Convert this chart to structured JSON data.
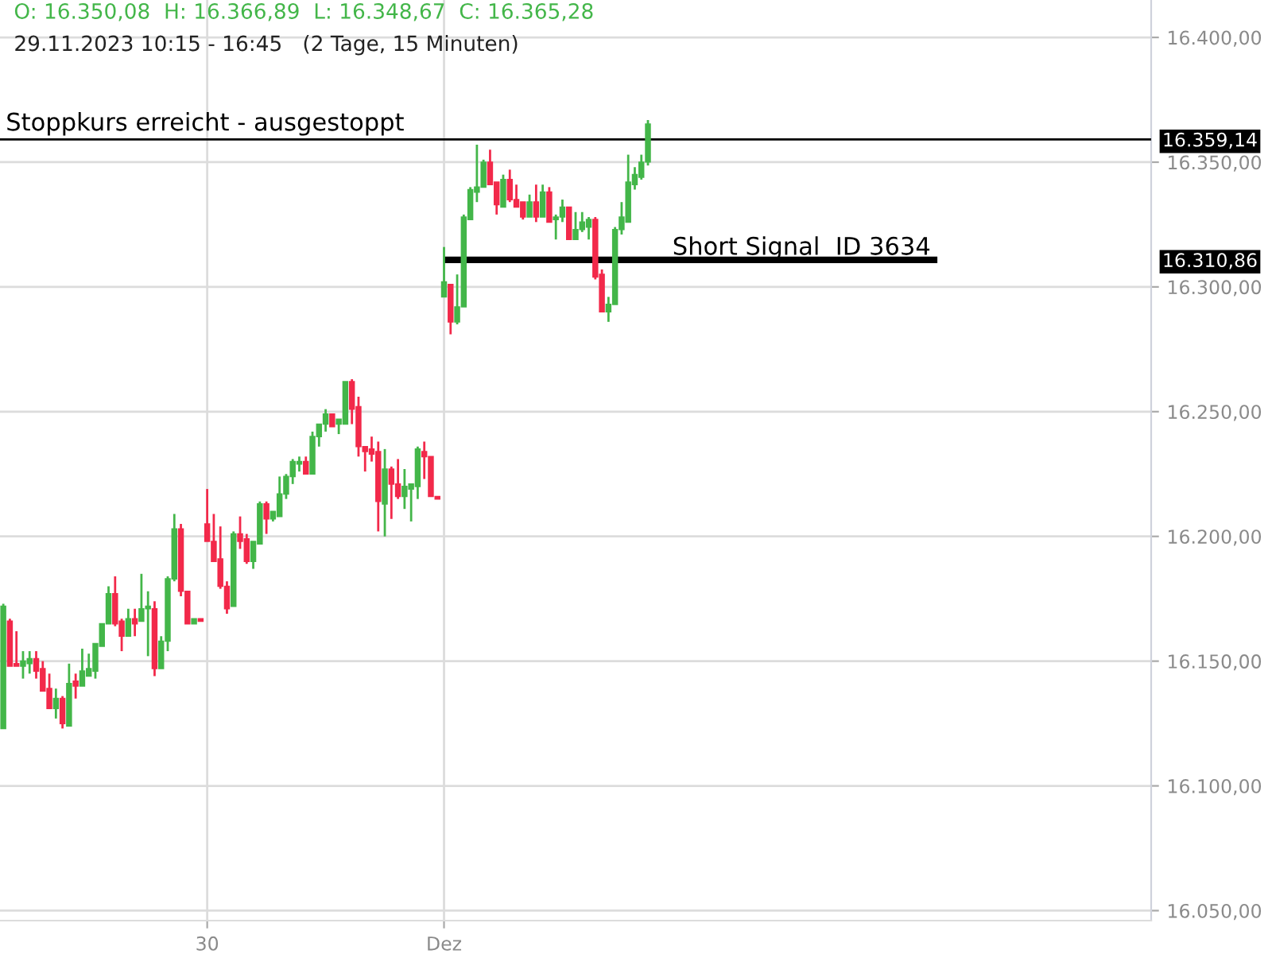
{
  "chart_data": {
    "type": "candlestick",
    "title": "O: 16.350,08  H: 16.366,89  L: 16.348,67  C: 16.365,28",
    "subtitle": "29.11.2023 10:15 - 16:45   (2 Tage, 15 Minuten)",
    "categories": [
      null,
      null,
      null,
      null,
      null,
      null,
      null,
      null,
      null,
      null,
      null,
      null,
      null,
      null,
      null,
      null,
      null,
      null,
      null,
      null,
      null,
      null,
      null,
      null,
      null,
      null,
      null,
      null,
      null,
      null,
      null,
      "30",
      null,
      null,
      null,
      null,
      null,
      null,
      null,
      null,
      null,
      null,
      null,
      null,
      null,
      null,
      null,
      null,
      null,
      null,
      null,
      null,
      null,
      null,
      null,
      null,
      null,
      null,
      null,
      null,
      null,
      null,
      null,
      null,
      null,
      null,
      null,
      "Dez",
      null,
      null,
      null,
      null,
      null,
      null,
      null,
      null,
      null,
      null,
      null,
      null,
      null,
      null,
      null,
      null,
      null,
      null,
      null,
      null,
      null,
      null,
      null,
      null,
      null,
      null,
      null,
      null,
      null,
      null,
      null,
      null,
      null,
      null,
      null,
      null,
      null,
      null,
      null,
      null,
      null,
      null,
      null,
      null,
      null,
      null,
      null,
      null,
      null,
      null,
      null,
      null,
      null,
      null,
      null,
      null,
      null,
      null,
      null,
      null,
      null,
      null,
      null,
      null,
      null,
      null,
      null,
      null,
      null,
      null,
      null,
      null,
      null,
      null,
      null,
      null,
      null,
      null,
      null,
      null,
      null,
      null,
      null,
      null,
      null,
      null,
      null,
      null,
      null,
      null,
      null,
      null,
      null,
      null,
      null,
      null,
      null,
      null,
      null,
      null,
      null,
      null,
      null,
      null,
      null,
      null,
      null
    ],
    "ylim": [
      16046,
      16415
    ],
    "yticks": [
      {
        "value": 16050,
        "label": "16.050,00"
      },
      {
        "value": 16100,
        "label": "16.100,00"
      },
      {
        "value": 16150,
        "label": "16.150,00"
      },
      {
        "value": 16200,
        "label": "16.200,00"
      },
      {
        "value": 16250,
        "label": "16.250,00"
      },
      {
        "value": 16300,
        "label": "16.300,00"
      },
      {
        "value": 16350,
        "label": "16.350,00"
      },
      {
        "value": 16400,
        "label": "16.400,00"
      }
    ],
    "grid": true,
    "series": [
      {
        "colors": [
          "#43b649",
          "#f2294a",
          "#f2294a",
          "#43b649",
          "#43b649",
          "#f2294a",
          "#f2294a",
          "#f2294a",
          "#43b649",
          "#f2294a",
          "#43b649",
          "#f2294a",
          "#43b649",
          "#43b649",
          "#43b649",
          "#43b649",
          "#43b649",
          "#f2294a",
          "#f2294a",
          "#43b649",
          "#f2294a",
          "#43b649",
          "#43b649",
          "#f2294a",
          "#43b649",
          "#43b649",
          "#43b649",
          "#f2294a",
          "#f2294a",
          "#43b649",
          "#f2294a",
          "#f2294a",
          "#f2294a",
          "#f2294a",
          "#f2294a",
          "#43b649",
          "#f2294a",
          "#f2294a",
          "#43b649",
          "#43b649",
          "#f2294a",
          "#43b649",
          "#43b649",
          "#43b649",
          "#43b649",
          "#43b649",
          "#f2294a",
          "#43b649",
          "#43b649",
          "#43b649",
          "#f2294a",
          "#43b649",
          "#43b649",
          "#f2294a",
          "#f2294a",
          "#f2294a",
          "#f2294a",
          "#f2294a",
          "#43b649",
          "#f2294a",
          "#f2294a",
          "#43b649",
          "#43b649",
          "#43b649",
          "#f2294a",
          "#f2294a",
          "#f2294a",
          "#43b649",
          "#f2294a",
          "#43b649",
          "#43b649",
          "#43b649",
          "#43b649",
          "#43b649",
          "#f2294a",
          "#f2294a",
          "#43b649",
          "#f2294a",
          "#f2294a",
          "#f2294a",
          "#43b649",
          "#f2294a",
          "#43b649",
          "#f2294a",
          "#43b649",
          "#43b649",
          "#f2294a",
          "#43b649",
          "#43b649",
          "#43b649",
          "#f2294a",
          "#f2294a",
          "#43b649",
          "#43b649",
          "#43b649",
          "#43b649",
          "#43b649",
          "#43b649",
          "#43b649",
          null,
          null,
          null,
          null,
          null,
          null,
          null,
          null,
          null,
          null,
          null,
          null,
          null,
          null,
          null,
          null,
          null,
          null,
          null,
          null,
          null,
          null,
          null,
          null,
          null,
          null,
          null,
          null,
          null,
          null,
          null,
          null,
          null,
          null,
          null,
          null,
          null,
          null,
          null,
          null,
          null,
          null,
          null,
          null,
          null,
          null,
          null,
          null,
          null,
          null,
          null,
          null,
          null,
          null,
          null,
          null,
          null,
          null,
          null,
          null,
          null,
          null,
          null,
          null,
          null,
          null,
          null,
          null,
          null,
          null,
          null,
          null,
          null,
          null,
          null,
          null
        ],
        "ohlc": [
          [
            16123,
            16173,
            16123,
            16172
          ],
          [
            16166,
            16167,
            16148,
            16148
          ],
          [
            16149,
            16162,
            16148,
            16148
          ],
          [
            16148,
            16154,
            16143,
            16150
          ],
          [
            16149,
            16154,
            16145,
            16151
          ],
          [
            16151,
            16154,
            16143,
            16146
          ],
          [
            16147,
            16150,
            16138,
            16138
          ],
          [
            16139,
            16145,
            16131,
            16131
          ],
          [
            16131,
            16139,
            16127,
            16135
          ],
          [
            16135,
            16136,
            16123,
            16125
          ],
          [
            16124,
            16149,
            16124,
            16141
          ],
          [
            16142,
            16145,
            16135,
            16140
          ],
          [
            16140,
            16155,
            16140,
            16146
          ],
          [
            16144,
            16153,
            16144,
            16147
          ],
          [
            16146,
            16157,
            16143,
            16157
          ],
          [
            16156,
            16165,
            16156,
            16165
          ],
          [
            16165,
            16180,
            16165,
            16177
          ],
          [
            16177,
            16184,
            16164,
            16165
          ],
          [
            16166,
            16167,
            16154,
            16160
          ],
          [
            16160,
            16171,
            16160,
            16167
          ],
          [
            16167,
            16171,
            16160,
            16165
          ],
          [
            16166,
            16185,
            16166,
            16171
          ],
          [
            16171,
            16178,
            16152,
            16172
          ],
          [
            16171,
            16174,
            16144,
            16147
          ],
          [
            16147,
            16160,
            16147,
            16158
          ],
          [
            16158,
            16184,
            16154,
            16183
          ],
          [
            16183,
            16209,
            16182,
            16203
          ],
          [
            16203,
            16205,
            16176,
            16178
          ],
          [
            16178,
            16178,
            16165,
            16165
          ],
          [
            16165,
            16167,
            16165,
            16167
          ],
          [
            16167,
            16167,
            16166,
            16166
          ],
          [
            16205,
            16219,
            16198,
            16198
          ],
          [
            16198,
            16209,
            16190,
            16190
          ],
          [
            16191,
            16204,
            16179,
            16180
          ],
          [
            16180,
            16182,
            16169,
            16171
          ],
          [
            16172,
            16202,
            16172,
            16201
          ],
          [
            16201,
            16208,
            16195,
            16198
          ],
          [
            16199,
            16201,
            16189,
            16190
          ],
          [
            16190,
            16198,
            16187,
            16198
          ],
          [
            16197,
            16214,
            16197,
            16213
          ],
          [
            16213,
            16214,
            16201,
            16207
          ],
          [
            16207,
            16210,
            16206,
            16210
          ],
          [
            16208,
            16224,
            16208,
            16217
          ],
          [
            16217,
            16225,
            16215,
            16224
          ],
          [
            16224,
            16231,
            16221,
            16230
          ],
          [
            16229,
            16232,
            16226,
            16230
          ],
          [
            16230,
            16232,
            16225,
            16225
          ],
          [
            16225,
            16242,
            16225,
            16240
          ],
          [
            16240,
            16245,
            16236,
            16245
          ],
          [
            16245,
            16251,
            16242,
            16249
          ],
          [
            16249,
            16249,
            16244,
            16244
          ],
          [
            16245,
            16247,
            16241,
            16247
          ],
          [
            16245,
            16262,
            16245,
            16262
          ],
          [
            16262,
            16263,
            16245,
            16251
          ],
          [
            16252,
            16256,
            16232,
            16236
          ],
          [
            16236,
            16236,
            16226,
            16234
          ],
          [
            16235,
            16240,
            16230,
            16233
          ],
          [
            16234,
            16238,
            16202,
            16214
          ],
          [
            16213,
            16235,
            16200,
            16227
          ],
          [
            16227,
            16228,
            16207,
            16221
          ],
          [
            16221,
            16231,
            16215,
            16216
          ],
          [
            16216,
            16227,
            16211,
            16220
          ],
          [
            16219,
            16221,
            16206,
            16221
          ],
          [
            16220,
            16236,
            16215,
            16235
          ],
          [
            16234,
            16238,
            16223,
            16232
          ],
          [
            16232,
            16232,
            16216,
            16216
          ],
          [
            16216,
            16216,
            16215,
            16215
          ],
          [
            16296,
            16316,
            16296,
            16302
          ],
          [
            16301,
            16301,
            16281,
            16286
          ],
          [
            16286,
            16305,
            16285,
            16292
          ],
          [
            16292,
            16329,
            16292,
            16328
          ],
          [
            16327,
            16340,
            16327,
            16339
          ],
          [
            16338,
            16357,
            16334,
            16340
          ],
          [
            16340,
            16351,
            16340,
            16350
          ],
          [
            16350,
            16355,
            16341,
            16341
          ],
          [
            16342,
            16342,
            16329,
            16333
          ],
          [
            16332,
            16345,
            16332,
            16343
          ],
          [
            16343,
            16347,
            16334,
            16335
          ],
          [
            16335,
            16341,
            16332,
            16332
          ],
          [
            16334,
            16334,
            16327,
            16328
          ],
          [
            16328,
            16337,
            16328,
            16334
          ],
          [
            16334,
            16341,
            16326,
            16328
          ],
          [
            16328,
            16341,
            16328,
            16338
          ],
          [
            16338,
            16340,
            16326,
            16326
          ],
          [
            16327,
            16329,
            16319,
            16328
          ],
          [
            16328,
            16335,
            16326,
            16332
          ],
          [
            16332,
            16332,
            16319,
            16319
          ],
          [
            16319,
            16330,
            16319,
            16323
          ],
          [
            16323,
            16330,
            16322,
            16326
          ],
          [
            16324,
            16328,
            16319,
            16327
          ],
          [
            16327,
            16328,
            16303,
            16304
          ],
          [
            16305,
            16307,
            16290,
            16290
          ],
          [
            16290,
            16296,
            16286,
            16293
          ],
          [
            16293,
            16324,
            16293,
            16323
          ],
          [
            16323,
            16334,
            16321,
            16328
          ],
          [
            16326,
            16353,
            16326,
            16342
          ],
          [
            16341,
            16348,
            16339,
            16345
          ],
          [
            16344,
            16353,
            16343,
            16350
          ],
          [
            16350.08,
            16366.89,
            16348.67,
            16365.28
          ],
          null,
          null,
          null,
          null,
          null,
          null,
          null,
          null,
          null,
          null,
          null,
          null,
          null,
          null,
          null,
          null,
          null,
          null,
          null,
          null,
          null,
          null,
          null,
          null,
          null,
          null,
          null,
          null,
          null,
          null,
          null,
          null,
          null,
          null,
          null,
          null,
          null,
          null,
          null,
          null,
          null,
          null,
          null,
          null,
          null,
          null,
          null,
          null,
          null,
          null,
          null,
          null,
          null,
          null,
          null,
          null,
          null,
          null,
          null,
          null,
          null,
          null,
          null,
          null,
          null,
          null,
          null,
          null,
          null,
          null,
          null,
          null,
          null,
          null,
          null,
          null
        ]
      },
      {
        "type": "line",
        "name": "Short Signal  ID 3634",
        "color": "#000000",
        "values": [
          null,
          null,
          null,
          null,
          null,
          null,
          null,
          null,
          null,
          null,
          null,
          null,
          null,
          null,
          null,
          null,
          null,
          null,
          null,
          null,
          null,
          null,
          null,
          null,
          null,
          null,
          null,
          null,
          null,
          null,
          null,
          null,
          null,
          null,
          null,
          null,
          null,
          null,
          null,
          null,
          null,
          null,
          null,
          null,
          null,
          null,
          null,
          null,
          null,
          null,
          null,
          null,
          null,
          null,
          null,
          null,
          null,
          null,
          null,
          null,
          null,
          null,
          null,
          null,
          null,
          null,
          null,
          16310.86,
          16310.86,
          16310.86,
          16310.86,
          16310.86,
          16310.86,
          16310.86,
          16310.86,
          16310.86,
          16310.86,
          16310.86,
          16310.86,
          16310.86,
          16310.86,
          16310.86,
          16310.86,
          16310.86,
          16310.86,
          16310.86,
          16310.86,
          16310.86,
          16310.86,
          16310.86,
          16310.86,
          16310.86,
          16310.86,
          16310.86,
          16310.86,
          16310.86,
          16310.86,
          16310.86,
          16310.86,
          16310.86,
          16310.86,
          16310.86,
          16310.86,
          16310.86,
          16310.86,
          16310.86,
          16310.86,
          16310.86,
          16310.86,
          16310.86,
          16310.86,
          16310.86,
          16310.86,
          16310.86,
          16310.86,
          16310.86,
          16310.86,
          16310.86,
          16310.86,
          16310.86,
          16310.86,
          16310.86,
          16310.86,
          16310.86,
          16310.86,
          16310.86,
          16310.86,
          16310.86,
          16310.86,
          16310.86,
          16310.86,
          16310.86,
          16310.86,
          16310.86,
          16310.86,
          16310.86,
          16310.86,
          16310.86,
          16310.86,
          16310.86,
          16310.86,
          16310.86,
          16310.86,
          null,
          null,
          null,
          null,
          null,
          null,
          null,
          null,
          null,
          null,
          null,
          null,
          null,
          null,
          null,
          null,
          null,
          null,
          null,
          null,
          null,
          null,
          null,
          null,
          null,
          null,
          null,
          null,
          null,
          null,
          null,
          null
        ]
      }
    ],
    "ref_lines": [
      {
        "axis": "y",
        "value": 16359.14,
        "label": "Stoppkurs erreicht - ausgestoppt",
        "color": "#000000"
      }
    ],
    "y2lim": [
      16046,
      16415
    ],
    "y2ticks": [
      {
        "value": 16359.14,
        "label": "16.359,14"
      },
      {
        "value": 16310.86,
        "label": "16.310,86"
      }
    ]
  }
}
